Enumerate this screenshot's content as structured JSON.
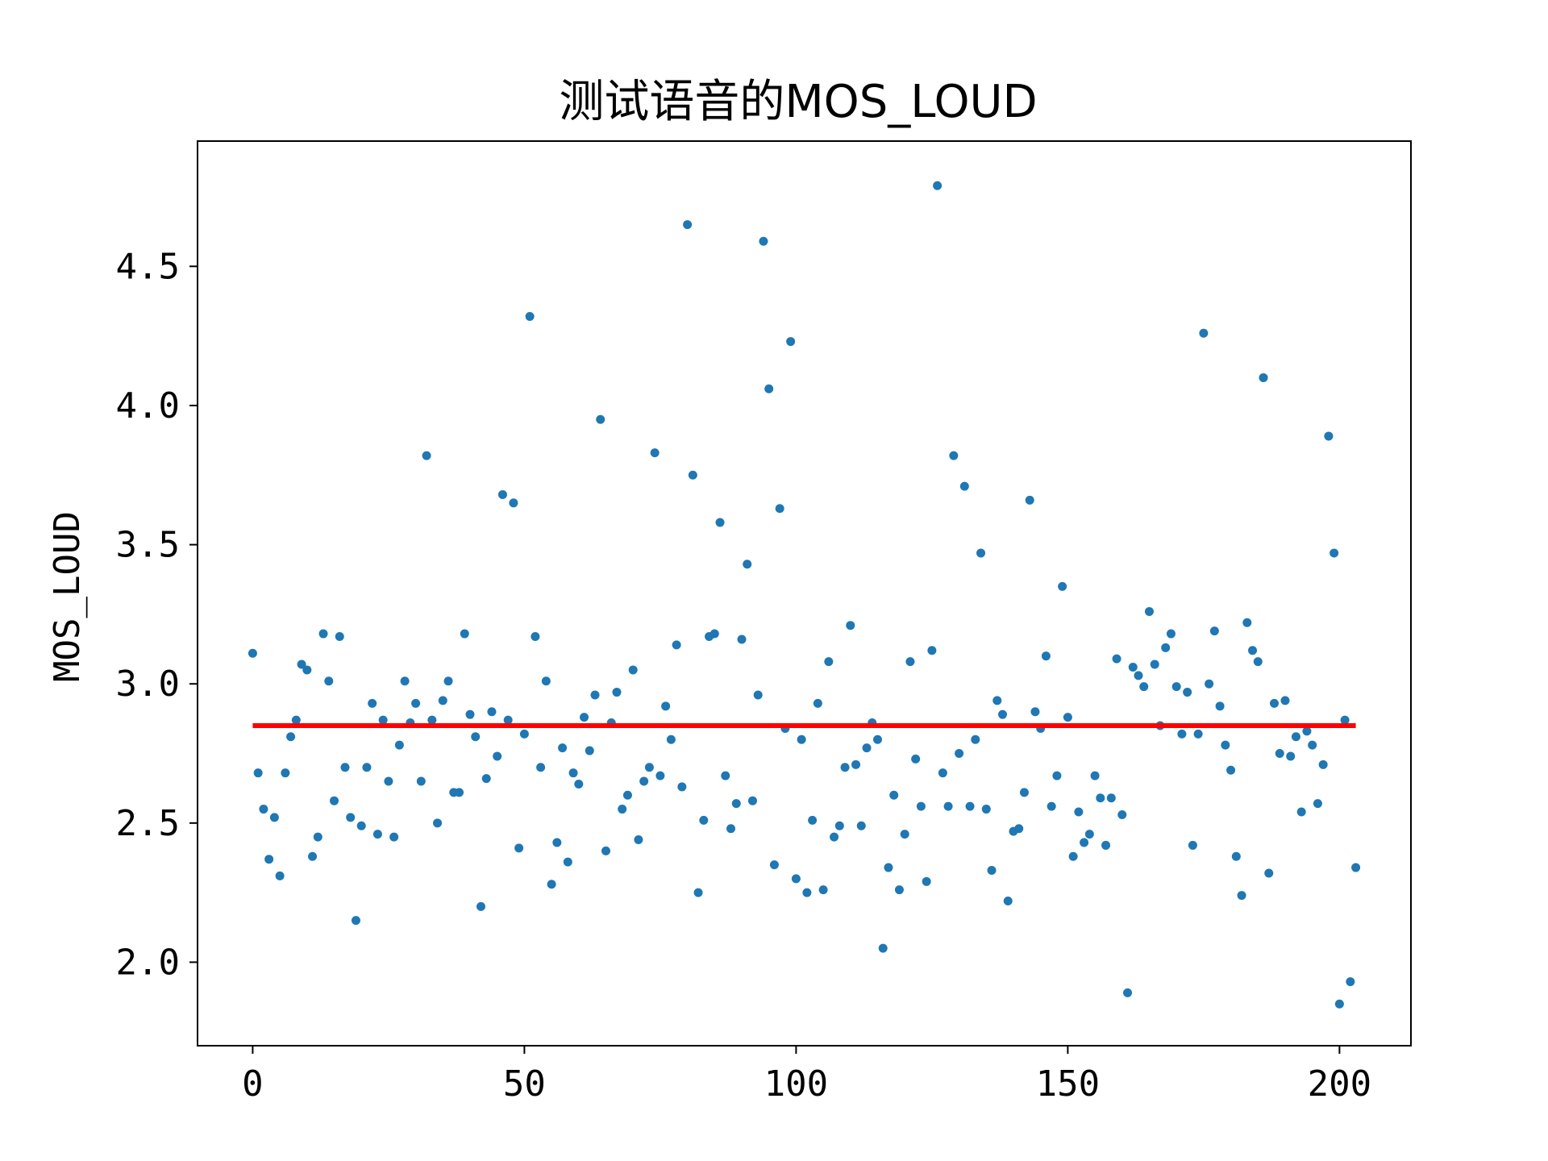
{
  "chart_data": {
    "type": "scatter",
    "title": "测试语音的MOS_LOUD",
    "xlabel": "",
    "ylabel": "MOS_LOUD",
    "xlim": [
      -10.15,
      213.15
    ],
    "ylim": [
      1.7,
      4.95
    ],
    "xticks": [
      0,
      50,
      100,
      150,
      200
    ],
    "xtick_labels": [
      "0",
      "50",
      "100",
      "150",
      "200"
    ],
    "yticks": [
      2.0,
      2.5,
      3.0,
      3.5,
      4.0,
      4.5
    ],
    "ytick_labels": [
      "2.0",
      "2.5",
      "3.0",
      "3.5",
      "4.0",
      "4.5"
    ],
    "grid": false,
    "colors": {
      "points": "#1f77b4",
      "mean_line": "#ff0000"
    },
    "series": [
      {
        "marker": "dot",
        "x": [
          0,
          1,
          2,
          3,
          4,
          5,
          6,
          7,
          8,
          9,
          10,
          11,
          12,
          13,
          14,
          15,
          16,
          17,
          18,
          19,
          20,
          21,
          22,
          23,
          24,
          25,
          26,
          27,
          28,
          29,
          30,
          31,
          32,
          33,
          34,
          35,
          36,
          37,
          38,
          39,
          40,
          41,
          42,
          43,
          44,
          45,
          46,
          47,
          48,
          49,
          50,
          51,
          52,
          53,
          54,
          55,
          56,
          57,
          58,
          59,
          60,
          61,
          62,
          63,
          64,
          65,
          66,
          67,
          68,
          69,
          70,
          71,
          72,
          73,
          74,
          75,
          76,
          77,
          78,
          79,
          80,
          81,
          82,
          83,
          84,
          85,
          86,
          87,
          88,
          89,
          90,
          91,
          92,
          93,
          94,
          95,
          96,
          97,
          98,
          99,
          100,
          101,
          102,
          103,
          104,
          105,
          106,
          107,
          108,
          109,
          110,
          111,
          112,
          113,
          114,
          115,
          116,
          117,
          118,
          119,
          120,
          121,
          122,
          123,
          124,
          125,
          126,
          127,
          128,
          129,
          130,
          131,
          132,
          133,
          134,
          135,
          136,
          137,
          138,
          139,
          140,
          141,
          142,
          143,
          144,
          145,
          146,
          147,
          148,
          149,
          150,
          151,
          152,
          153,
          154,
          155,
          156,
          157,
          158,
          159,
          160,
          161,
          162,
          163,
          164,
          165,
          166,
          167,
          168,
          169,
          170,
          171,
          172,
          173,
          174,
          175,
          176,
          177,
          178,
          179,
          180,
          181,
          182,
          183,
          184,
          185,
          186,
          187,
          188,
          189,
          190,
          191,
          192,
          193,
          194,
          195,
          196,
          197,
          198,
          199,
          200,
          201,
          202,
          203
        ],
        "y": [
          3.11,
          2.68,
          2.55,
          2.37,
          2.52,
          2.31,
          2.68,
          2.81,
          2.87,
          3.07,
          3.05,
          2.38,
          2.45,
          3.18,
          3.01,
          2.58,
          3.17,
          2.7,
          2.52,
          2.15,
          2.49,
          2.7,
          2.93,
          2.46,
          2.87,
          2.65,
          2.45,
          2.78,
          3.01,
          2.86,
          2.93,
          2.65,
          3.82,
          2.87,
          2.5,
          2.94,
          3.01,
          2.61,
          2.61,
          3.18,
          2.89,
          2.81,
          2.2,
          2.66,
          2.9,
          2.74,
          3.68,
          2.87,
          3.65,
          2.41,
          2.82,
          4.32,
          3.17,
          2.7,
          3.01,
          2.28,
          2.43,
          2.77,
          2.36,
          2.68,
          2.64,
          2.88,
          2.76,
          2.96,
          3.95,
          2.4,
          2.86,
          2.97,
          2.55,
          2.6,
          3.05,
          2.44,
          2.65,
          2.7,
          3.83,
          2.67,
          2.92,
          2.8,
          3.14,
          2.63,
          4.65,
          3.75,
          2.25,
          2.51,
          3.17,
          3.18,
          3.58,
          2.67,
          2.48,
          2.57,
          3.16,
          3.43,
          2.58,
          2.96,
          4.59,
          4.06,
          2.35,
          3.63,
          2.84,
          4.23,
          2.3,
          2.8,
          2.25,
          2.51,
          2.93,
          2.26,
          3.08,
          2.45,
          2.49,
          2.7,
          3.21,
          2.71,
          2.49,
          2.77,
          2.86,
          2.8,
          2.05,
          2.34,
          2.6,
          2.26,
          2.46,
          3.08,
          2.73,
          2.56,
          2.29,
          3.12,
          4.79,
          2.68,
          2.56,
          3.82,
          2.75,
          3.71,
          2.56,
          2.8,
          3.47,
          2.55,
          2.33,
          2.94,
          2.89,
          2.22,
          2.47,
          2.48,
          2.61,
          3.66,
          2.9,
          2.84,
          3.1,
          2.56,
          2.67,
          3.35,
          2.88,
          2.38,
          2.54,
          2.43,
          2.46,
          2.67,
          2.59,
          2.42,
          2.59,
          3.09,
          2.53,
          1.89,
          3.06,
          3.03,
          2.99,
          3.26,
          3.07,
          2.85,
          3.13,
          3.18,
          2.99,
          2.82,
          2.97,
          2.42,
          2.82,
          4.26,
          3.0,
          3.19,
          2.92,
          2.78,
          2.69,
          2.38,
          2.24,
          3.22,
          3.12,
          3.08,
          4.1,
          2.32,
          2.93,
          2.75,
          2.94,
          2.74,
          2.81,
          2.54,
          2.83,
          2.78,
          2.57,
          2.71,
          3.89,
          3.47,
          1.85,
          2.87,
          1.93,
          2.34
        ]
      }
    ],
    "mean_line": {
      "y": 2.85,
      "x_start": 0,
      "x_end": 203
    }
  }
}
